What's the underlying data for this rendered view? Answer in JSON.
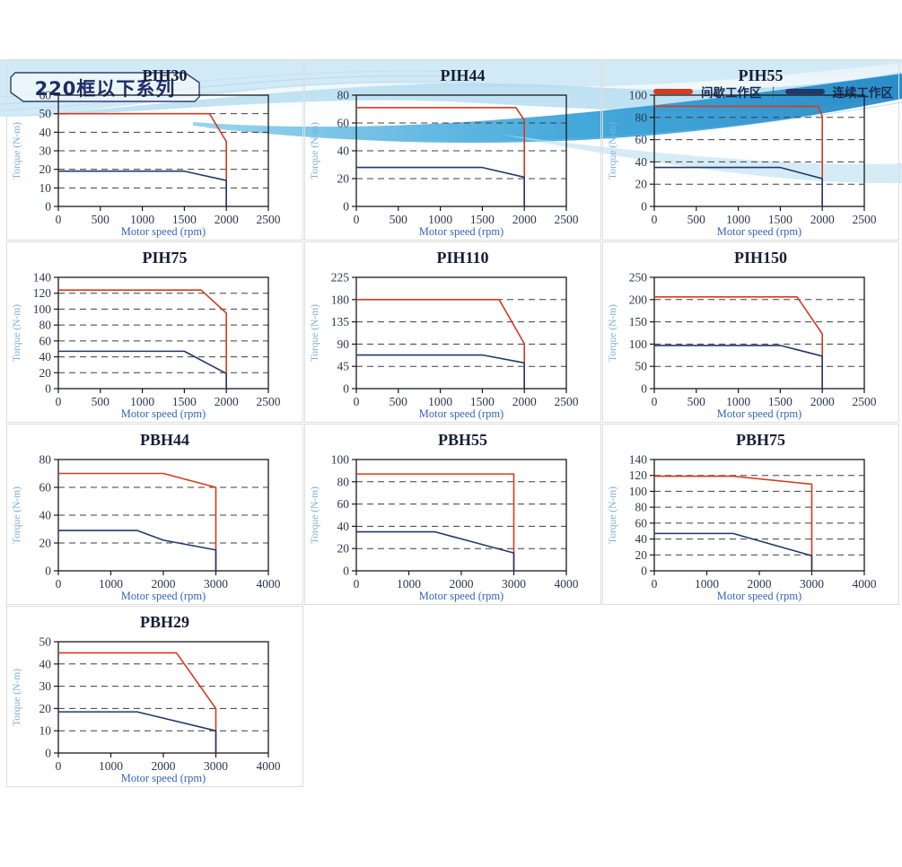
{
  "page": {
    "title_chip": "220框以下系列"
  },
  "legend": {
    "intermittent_label": "间歇工作区",
    "continuous_label": "连续工作区",
    "separator": "|",
    "intermittent_color": "#d63a21",
    "continuous_color": "#23386b"
  },
  "colors": {
    "intermittent": "#d63a21",
    "continuous": "#23386b",
    "grid_dash": "#3f3f3f",
    "plot_border": "#1a1a1a",
    "card_border": "#dddddd",
    "banner_blue": "#2e9ed6"
  },
  "axis": {
    "xlabel": "Motor speed (rpm)",
    "ylabel": "Torque (N-m)"
  },
  "chart_data": [
    {
      "type": "line",
      "title": "PIH30",
      "xlabel": "Motor speed (rpm)",
      "ylabel": "Torque (N-m)",
      "xlim": [
        0,
        2500
      ],
      "ylim": [
        0,
        60
      ],
      "xticks": [
        0,
        500,
        1000,
        1500,
        2000,
        2500
      ],
      "yticks": [
        0,
        10,
        20,
        30,
        40,
        50,
        60
      ],
      "series": [
        {
          "name": "间歇工作区",
          "key": "intermittent",
          "points": [
            [
              0,
              50
            ],
            [
              1800,
              50
            ],
            [
              2000,
              35
            ],
            [
              2000,
              0
            ]
          ]
        },
        {
          "name": "连续工作区",
          "key": "continuous",
          "points": [
            [
              0,
              19
            ],
            [
              1500,
              19
            ],
            [
              2000,
              14
            ],
            [
              2000,
              0
            ]
          ]
        }
      ]
    },
    {
      "type": "line",
      "title": "PIH44",
      "xlabel": "Motor speed (rpm)",
      "ylabel": "Torque (N-m)",
      "xlim": [
        0,
        2500
      ],
      "ylim": [
        0,
        80
      ],
      "xticks": [
        0,
        500,
        1000,
        1500,
        2000,
        2500
      ],
      "yticks": [
        0,
        20,
        40,
        60,
        80
      ],
      "series": [
        {
          "name": "间歇工作区",
          "key": "intermittent",
          "points": [
            [
              0,
              71
            ],
            [
              1900,
              71
            ],
            [
              2000,
              62
            ],
            [
              2000,
              0
            ]
          ]
        },
        {
          "name": "连续工作区",
          "key": "continuous",
          "points": [
            [
              0,
              28
            ],
            [
              1500,
              28
            ],
            [
              2000,
              21
            ],
            [
              2000,
              0
            ]
          ]
        }
      ]
    },
    {
      "type": "line",
      "title": "PIH55",
      "xlabel": "Motor speed (rpm)",
      "ylabel": "Torque (N-m)",
      "xlim": [
        0,
        2500
      ],
      "ylim": [
        0,
        100
      ],
      "xticks": [
        0,
        500,
        1000,
        1500,
        2000,
        2500
      ],
      "yticks": [
        0,
        20,
        40,
        60,
        80,
        100
      ],
      "series": [
        {
          "name": "间歇工作区",
          "key": "intermittent",
          "points": [
            [
              0,
              90
            ],
            [
              1950,
              90
            ],
            [
              2000,
              81
            ],
            [
              2000,
              0
            ]
          ]
        },
        {
          "name": "连续工作区",
          "key": "continuous",
          "points": [
            [
              0,
              35
            ],
            [
              1500,
              35
            ],
            [
              2000,
              25
            ],
            [
              2000,
              0
            ]
          ]
        }
      ]
    },
    {
      "type": "line",
      "title": "PIH75",
      "xlabel": "Motor speed (rpm)",
      "ylabel": "Torque (N-m)",
      "xlim": [
        0,
        2500
      ],
      "ylim": [
        0,
        140
      ],
      "xticks": [
        0,
        500,
        1000,
        1500,
        2000,
        2500
      ],
      "yticks": [
        0,
        20,
        40,
        60,
        80,
        100,
        120,
        140
      ],
      "series": [
        {
          "name": "间歇工作区",
          "key": "intermittent",
          "points": [
            [
              0,
              124
            ],
            [
              1700,
              124
            ],
            [
              2000,
              95
            ],
            [
              2000,
              0
            ]
          ]
        },
        {
          "name": "连续工作区",
          "key": "continuous",
          "points": [
            [
              0,
              47
            ],
            [
              1500,
              47
            ],
            [
              2000,
              19
            ],
            [
              2000,
              0
            ]
          ]
        }
      ]
    },
    {
      "type": "line",
      "title": "PIH110",
      "xlabel": "Motor speed (rpm)",
      "ylabel": "Torque (N-m)",
      "xlim": [
        0,
        2500
      ],
      "ylim": [
        0,
        225
      ],
      "xticks": [
        0,
        500,
        1000,
        1500,
        2000,
        2500
      ],
      "yticks": [
        0,
        45,
        90,
        135,
        180,
        225
      ],
      "series": [
        {
          "name": "间歇工作区",
          "key": "intermittent",
          "points": [
            [
              0,
              180
            ],
            [
              1700,
              180
            ],
            [
              2000,
              91
            ],
            [
              2000,
              0
            ]
          ]
        },
        {
          "name": "连续工作区",
          "key": "continuous",
          "points": [
            [
              0,
              68
            ],
            [
              1500,
              68
            ],
            [
              2000,
              52
            ],
            [
              2000,
              0
            ]
          ]
        }
      ]
    },
    {
      "type": "line",
      "title": "PIH150",
      "xlabel": "Motor speed (rpm)",
      "ylabel": "Torque (N-m)",
      "xlim": [
        0,
        2500
      ],
      "ylim": [
        0,
        250
      ],
      "xticks": [
        0,
        500,
        1000,
        1500,
        2000,
        2500
      ],
      "yticks": [
        0,
        50,
        100,
        150,
        200,
        250
      ],
      "series": [
        {
          "name": "间歇工作区",
          "key": "intermittent",
          "points": [
            [
              0,
              206
            ],
            [
              1700,
              206
            ],
            [
              2000,
              123
            ],
            [
              2000,
              0
            ]
          ]
        },
        {
          "name": "连续工作区",
          "key": "continuous",
          "points": [
            [
              0,
              97
            ],
            [
              1500,
              97
            ],
            [
              2000,
              73
            ],
            [
              2000,
              0
            ]
          ]
        }
      ]
    },
    {
      "type": "line",
      "title": "PBH44",
      "xlabel": "Motor speed (rpm)",
      "ylabel": "Torque (N-m)",
      "xlim": [
        0,
        4000
      ],
      "ylim": [
        0,
        80
      ],
      "xticks": [
        0,
        1000,
        2000,
        3000,
        4000
      ],
      "yticks": [
        0,
        20,
        40,
        60,
        80
      ],
      "series": [
        {
          "name": "间歇工作区",
          "key": "intermittent",
          "points": [
            [
              0,
              70
            ],
            [
              2000,
              70
            ],
            [
              3000,
              60
            ],
            [
              3000,
              0
            ]
          ]
        },
        {
          "name": "连续工作区",
          "key": "continuous",
          "points": [
            [
              0,
              29
            ],
            [
              1500,
              29
            ],
            [
              2000,
              22
            ],
            [
              3000,
              15
            ],
            [
              3000,
              0
            ]
          ]
        }
      ]
    },
    {
      "type": "line",
      "title": "PBH55",
      "xlabel": "Motor speed (rpm)",
      "ylabel": "Torque (N-m)",
      "xlim": [
        0,
        4000
      ],
      "ylim": [
        0,
        100
      ],
      "xticks": [
        0,
        1000,
        2000,
        3000,
        4000
      ],
      "yticks": [
        0,
        20,
        40,
        60,
        80,
        100
      ],
      "series": [
        {
          "name": "间歇工作区",
          "key": "intermittent",
          "points": [
            [
              0,
              87
            ],
            [
              3000,
              87
            ],
            [
              3000,
              0
            ]
          ]
        },
        {
          "name": "连续工作区",
          "key": "continuous",
          "points": [
            [
              0,
              35
            ],
            [
              1500,
              35
            ],
            [
              3000,
              16
            ],
            [
              3000,
              0
            ]
          ]
        }
      ]
    },
    {
      "type": "line",
      "title": "PBH75",
      "xlabel": "Motor speed (rpm)",
      "ylabel": "Torque (N-m)",
      "xlim": [
        0,
        4000
      ],
      "ylim": [
        0,
        140
      ],
      "xticks": [
        0,
        1000,
        2000,
        3000,
        4000
      ],
      "yticks": [
        0,
        20,
        40,
        60,
        80,
        100,
        120,
        140
      ],
      "series": [
        {
          "name": "间歇工作区",
          "key": "intermittent",
          "points": [
            [
              0,
              119
            ],
            [
              1500,
              119
            ],
            [
              3000,
              109
            ],
            [
              3000,
              0
            ]
          ]
        },
        {
          "name": "连续工作区",
          "key": "continuous",
          "points": [
            [
              0,
              47
            ],
            [
              1500,
              47
            ],
            [
              3000,
              19
            ],
            [
              3000,
              0
            ]
          ]
        }
      ]
    },
    {
      "type": "line",
      "title": "PBH29",
      "xlabel": "Motor speed (rpm)",
      "ylabel": "Torque (N-m)",
      "xlim": [
        0,
        4000
      ],
      "ylim": [
        0,
        50
      ],
      "xticks": [
        0,
        1000,
        2000,
        3000,
        4000
      ],
      "yticks": [
        0,
        10,
        20,
        30,
        40,
        50
      ],
      "series": [
        {
          "name": "间歇工作区",
          "key": "intermittent",
          "points": [
            [
              0,
              45
            ],
            [
              2250,
              45
            ],
            [
              3000,
              20
            ],
            [
              3000,
              0
            ]
          ]
        },
        {
          "name": "连续工作区",
          "key": "continuous",
          "points": [
            [
              0,
              18.5
            ],
            [
              1500,
              18.5
            ],
            [
              3000,
              10
            ],
            [
              3000,
              0
            ]
          ]
        }
      ]
    }
  ]
}
